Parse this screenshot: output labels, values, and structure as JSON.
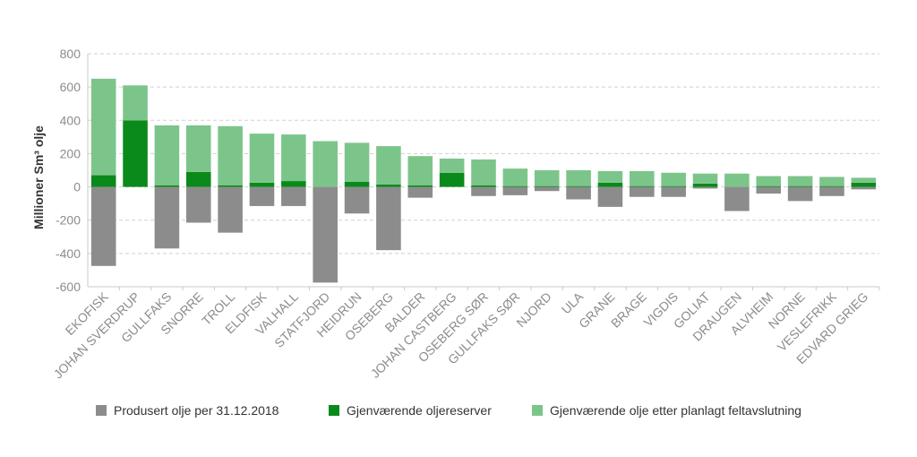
{
  "chart_data": {
    "type": "bar",
    "stacked": true,
    "ylabel": "Millioner Sm³ olje",
    "ylim": [
      -600,
      800
    ],
    "yticks": [
      800,
      600,
      400,
      200,
      0,
      -200,
      -400,
      -600
    ],
    "grid": true,
    "legend_position": "bottom",
    "categories": [
      "EKOFISK",
      "JOHAN SVERDRUP",
      "GULLFAKS",
      "SNORRE",
      "TROLL",
      "ELDFISK",
      "VALHALL",
      "STATFJORD",
      "HEIDRUN",
      "OSEBERG",
      "BALDER",
      "JOHAN CASTBERG",
      "OSEBERG SØR",
      "GULLFAKS SØR",
      "NJORD",
      "ULA",
      "GRANE",
      "BRAGE",
      "VIGDIS",
      "GOLIAT",
      "DRAUGEN",
      "ALVHEIM",
      "NORNE",
      "VESLEFRIKK",
      "EDVARD GRIEG"
    ],
    "series": [
      {
        "name": "Produsert olje per 31.12.2018",
        "color": "#8c8c8c",
        "values": [
          -475,
          0,
          -370,
          -215,
          -275,
          -115,
          -115,
          -575,
          -160,
          -380,
          -65,
          0,
          -55,
          -50,
          -25,
          -75,
          -120,
          -60,
          -60,
          -10,
          -145,
          -40,
          -85,
          -55,
          -15
        ]
      },
      {
        "name": "Gjenværende oljereserver",
        "color": "#0a8a1a",
        "values": [
          70,
          400,
          10,
          90,
          10,
          25,
          35,
          0,
          30,
          15,
          10,
          85,
          10,
          5,
          5,
          5,
          25,
          5,
          5,
          20,
          0,
          5,
          5,
          5,
          25
        ]
      },
      {
        "name": "Gjenværende olje etter planlagt feltavslutning",
        "color": "#7cc58a",
        "values": [
          580,
          210,
          360,
          280,
          355,
          295,
          280,
          275,
          235,
          230,
          175,
          85,
          155,
          105,
          95,
          95,
          70,
          90,
          80,
          60,
          80,
          60,
          60,
          55,
          30
        ]
      }
    ]
  }
}
